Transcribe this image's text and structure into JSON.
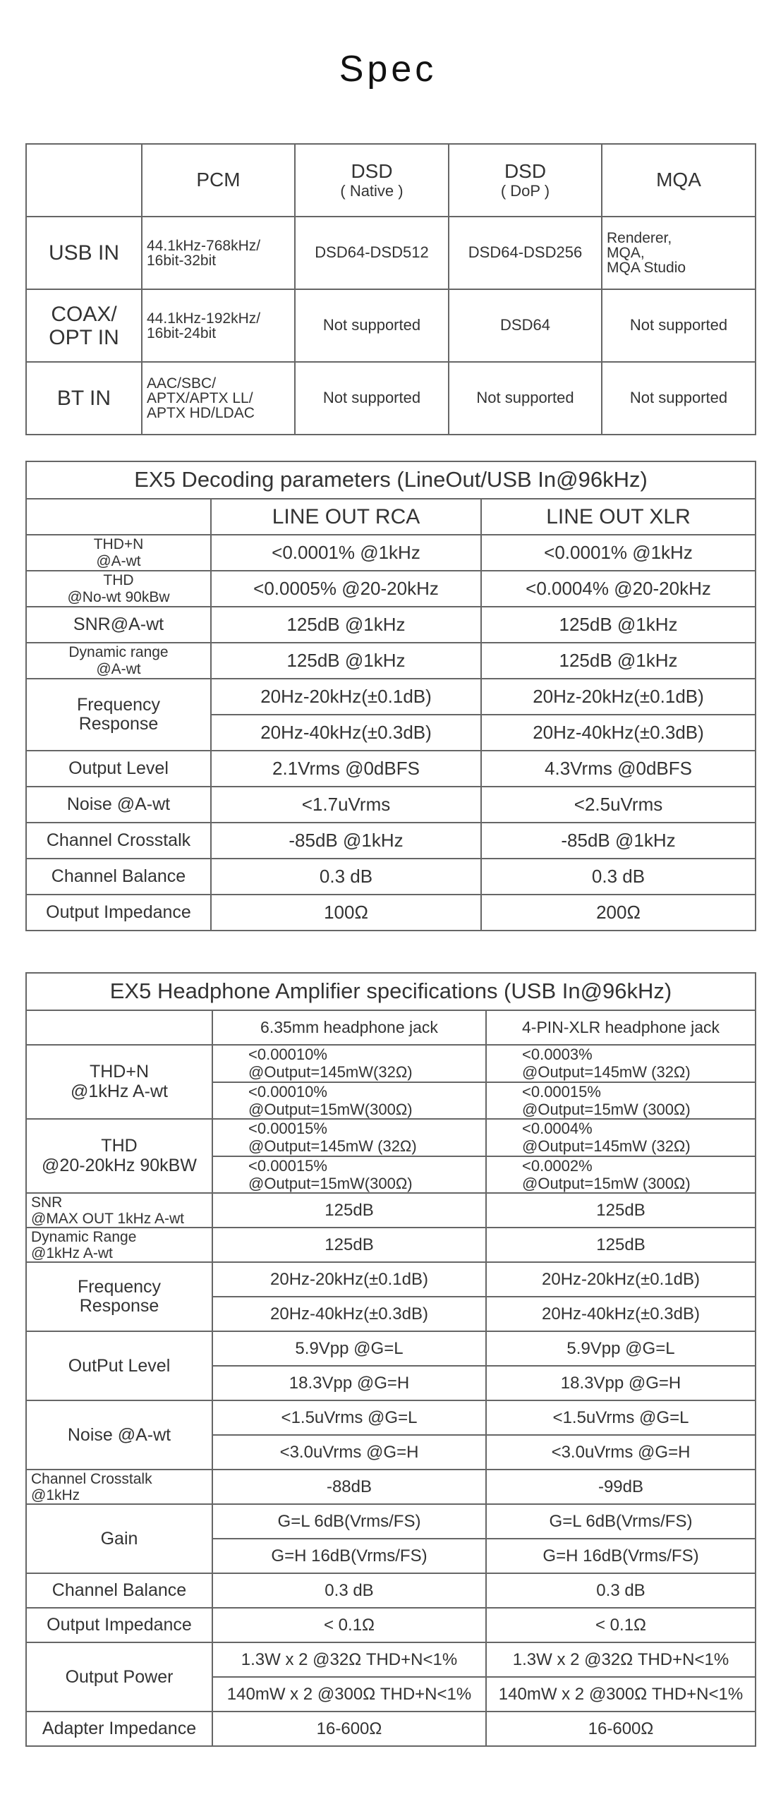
{
  "title": "Spec",
  "input_table": {
    "headers": [
      {
        "main": "",
        "sub": ""
      },
      {
        "main": "PCM",
        "sub": ""
      },
      {
        "main": "DSD",
        "sub": "( Native )"
      },
      {
        "main": "DSD",
        "sub": "( DoP )"
      },
      {
        "main": "MQA",
        "sub": ""
      }
    ],
    "rows": [
      {
        "label": "USB IN",
        "cells": [
          "44.1kHz-768kHz/\n16bit-32bit",
          "DSD64-DSD512",
          "DSD64-DSD256",
          "Renderer,\nMQA,\nMQA Studio"
        ]
      },
      {
        "label": "COAX/\nOPT IN",
        "cells": [
          "44.1kHz-192kHz/\n16bit-24bit",
          "Not supported",
          "DSD64",
          "Not supported"
        ]
      },
      {
        "label": "BT IN",
        "cells": [
          "AAC/SBC/\nAPTX/APTX LL/\nAPTX HD/LDAC",
          "Not supported",
          "Not supported",
          "Not supported"
        ]
      }
    ]
  },
  "decoding_table": {
    "caption": "EX5 Decoding parameters (LineOut/USB In@96kHz)",
    "columns": [
      "",
      "LINE OUT RCA",
      "LINE OUT XLR"
    ],
    "rows": [
      {
        "label": "THD+N\n@A-wt",
        "sub": [
          [
            "<0.0001% @1kHz",
            "<0.0001% @1kHz"
          ]
        ]
      },
      {
        "label": "THD\n@No-wt  90kBw",
        "sub": [
          [
            "<0.0005% @20-20kHz",
            "<0.0004% @20-20kHz"
          ]
        ]
      },
      {
        "label": "SNR@A-wt",
        "sub": [
          [
            "125dB @1kHz",
            "125dB @1kHz"
          ]
        ]
      },
      {
        "label": "Dynamic range\n@A-wt",
        "sub": [
          [
            "125dB @1kHz",
            "125dB @1kHz"
          ]
        ]
      },
      {
        "label": "Frequency\nResponse",
        "sub": [
          [
            "20Hz-20kHz(±0.1dB)",
            "20Hz-20kHz(±0.1dB)"
          ],
          [
            "20Hz-40kHz(±0.3dB)",
            "20Hz-40kHz(±0.3dB)"
          ]
        ]
      },
      {
        "label": "Output Level",
        "sub": [
          [
            "2.1Vrms @0dBFS",
            "4.3Vrms @0dBFS"
          ]
        ]
      },
      {
        "label": "Noise @A-wt",
        "sub": [
          [
            "<1.7uVrms",
            "<2.5uVrms"
          ]
        ]
      },
      {
        "label": "Channel Crosstalk",
        "sub": [
          [
            "-85dB @1kHz",
            "-85dB @1kHz"
          ]
        ]
      },
      {
        "label": "Channel Balance",
        "sub": [
          [
            "0.3 dB",
            "0.3 dB"
          ]
        ]
      },
      {
        "label": "Output Impedance",
        "sub": [
          [
            "100Ω",
            "200Ω"
          ]
        ]
      }
    ]
  },
  "amp_table": {
    "caption": "EX5 Headphone Amplifier specifications (USB In@96kHz)",
    "columns": [
      "",
      "6.35mm headphone jack",
      "4-PIN-XLR headphone jack"
    ],
    "rows": [
      {
        "label": "THD+N\n@1kHz A-wt",
        "sub": [
          [
            "<0.00010%\n@Output=145mW(32Ω)",
            "<0.0003%\n@Output=145mW (32Ω)"
          ],
          [
            "<0.00010%\n@Output=15mW(300Ω)",
            "<0.00015%\n@Output=15mW (300Ω)"
          ]
        ]
      },
      {
        "label": "THD\n@20-20kHz 90kBW",
        "sub": [
          [
            "<0.00015%\n@Output=145mW (32Ω)",
            "<0.0004%\n@Output=145mW (32Ω)"
          ],
          [
            "<0.00015%\n@Output=15mW(300Ω)",
            "<0.0002%\n@Output=15mW (300Ω)"
          ]
        ]
      },
      {
        "label": "SNR\n@MAX OUT 1kHz A-wt",
        "sub": [
          [
            "125dB",
            "125dB"
          ]
        ]
      },
      {
        "label": "Dynamic Range\n@1kHz A-wt",
        "sub": [
          [
            "125dB",
            "125dB"
          ]
        ]
      },
      {
        "label": "Frequency\nResponse",
        "sub": [
          [
            "20Hz-20kHz(±0.1dB)",
            "20Hz-20kHz(±0.1dB)"
          ],
          [
            "20Hz-40kHz(±0.3dB)",
            "20Hz-40kHz(±0.3dB)"
          ]
        ]
      },
      {
        "label": "OutPut Level",
        "sub": [
          [
            "5.9Vpp @G=L",
            "5.9Vpp @G=L"
          ],
          [
            "18.3Vpp @G=H",
            "18.3Vpp @G=H"
          ]
        ]
      },
      {
        "label": "Noise @A-wt",
        "sub": [
          [
            "<1.5uVrms @G=L",
            "<1.5uVrms @G=L"
          ],
          [
            "<3.0uVrms @G=H",
            "<3.0uVrms @G=H"
          ]
        ]
      },
      {
        "label": "Channel Crosstalk\n@1kHz",
        "sub": [
          [
            "-88dB",
            "-99dB"
          ]
        ]
      },
      {
        "label": "Gain",
        "sub": [
          [
            "G=L 6dB(Vrms/FS)",
            "G=L 6dB(Vrms/FS)"
          ],
          [
            "G=H 16dB(Vrms/FS)",
            "G=H 16dB(Vrms/FS)"
          ]
        ]
      },
      {
        "label": "Channel Balance",
        "sub": [
          [
            "0.3 dB",
            "0.3 dB"
          ]
        ]
      },
      {
        "label": "Output Impedance",
        "sub": [
          [
            "< 0.1Ω",
            "< 0.1Ω"
          ]
        ]
      },
      {
        "label": "Output Power",
        "sub": [
          [
            "1.3W x 2 @32Ω THD+N<1%",
            "1.3W x 2 @32Ω THD+N<1%"
          ],
          [
            "140mW x 2 @300Ω THD+N<1%",
            "140mW x 2 @300Ω THD+N<1%"
          ]
        ]
      },
      {
        "label": "Adapter Impedance",
        "sub": [
          [
            "16-600Ω",
            "16-600Ω"
          ]
        ]
      }
    ]
  }
}
